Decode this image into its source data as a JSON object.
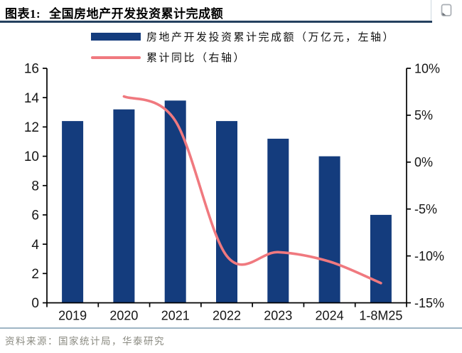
{
  "header": {
    "figure_label": "图表1:",
    "title": "全国房地产开发投资累计完成额"
  },
  "legend": {
    "items": [
      {
        "swatch": "bar",
        "color": "#143c7d",
        "label": "房地产开发投资累计完成额（万亿元，左轴）"
      },
      {
        "swatch": "line",
        "color": "#f0797f",
        "label": "累计同比（右轴）"
      }
    ]
  },
  "chart_data": {
    "type": "bar+line combo",
    "categories": [
      "2019",
      "2020",
      "2021",
      "2022",
      "2023",
      "2024",
      "1-8M25"
    ],
    "series": [
      {
        "name": "房地产开发投资累计完成额（万亿元，左轴）",
        "type": "bar",
        "axis": "left",
        "color": "#143c7d",
        "values": [
          12.4,
          13.2,
          13.8,
          12.4,
          11.2,
          10.0,
          6.0
        ]
      },
      {
        "name": "累计同比（右轴）",
        "type": "line",
        "axis": "right",
        "color": "#f0797f",
        "values": [
          null,
          7.0,
          4.4,
          -10.0,
          -9.6,
          -10.6,
          -12.9
        ]
      }
    ],
    "left_axis": {
      "min": 0,
      "max": 16,
      "tick_step": 2,
      "ticks": [
        0,
        2,
        4,
        6,
        8,
        10,
        12,
        14,
        16
      ]
    },
    "right_axis": {
      "min": -15,
      "max": 10,
      "tick_step": 5,
      "tick_labels": [
        "10%",
        "5%",
        "0%",
        "-5%",
        "-10%",
        "-15%"
      ]
    },
    "grid": false,
    "legend_position": "top",
    "line_smoothing": true
  },
  "footer": {
    "source": "资料来源：国家统计局，华泰研究"
  },
  "icons": {
    "copy_icon": "copy-page-icon"
  },
  "colors": {
    "bar": "#143c7d",
    "line": "#f0797f",
    "header_rule": "#24405f",
    "footer_rule": "#9fb5c5",
    "axis": "#000000"
  }
}
